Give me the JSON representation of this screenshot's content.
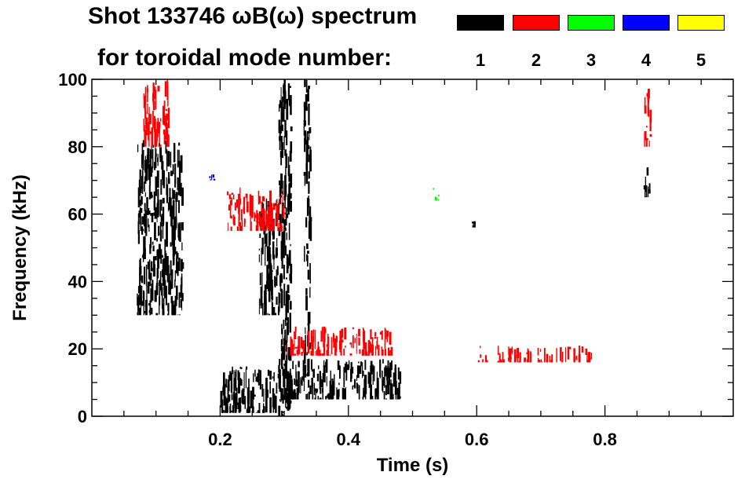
{
  "title": {
    "line1": "Shot 133746 ωB(ω) spectrum",
    "line2": "for toroidal mode number:"
  },
  "legend": [
    {
      "label": "1",
      "color": "#000000"
    },
    {
      "label": "2",
      "color": "#ff0000"
    },
    {
      "label": "3",
      "color": "#00ff00"
    },
    {
      "label": "4",
      "color": "#0000ff"
    },
    {
      "label": "5",
      "color": "#ffff00"
    }
  ],
  "chart_data": {
    "type": "heatmap",
    "xlabel": "Time (s)",
    "ylabel": "Frequency (kHz)",
    "xlim": [
      0.0,
      1.0
    ],
    "ylim": [
      0,
      100
    ],
    "x_ticks": [
      0.2,
      0.4,
      0.6,
      0.8
    ],
    "x_tick_labels": [
      "0.2",
      "0.4",
      "0.6",
      "0.8"
    ],
    "y_ticks": [
      0,
      20,
      40,
      60,
      80,
      100
    ],
    "y_tick_labels": [
      "0",
      "20",
      "40",
      "60",
      "80",
      "100"
    ],
    "grid": false,
    "legend_position": "top-right",
    "series": [
      {
        "name": "1",
        "color": "#000000",
        "regions": [
          {
            "t": [
              0.3,
              0.48
            ],
            "f": [
              5,
              17
            ]
          },
          {
            "t": [
              0.29,
              0.31
            ],
            "f": [
              0,
              100
            ]
          },
          {
            "t": [
              0.33,
              0.34
            ],
            "f": [
              12,
              100
            ]
          },
          {
            "t": [
              0.2,
              0.3
            ],
            "f": [
              1,
              15
            ]
          },
          {
            "t": [
              0.07,
              0.14
            ],
            "f": [
              30,
              82
            ]
          },
          {
            "t": [
              0.26,
              0.29
            ],
            "f": [
              30,
              65
            ]
          },
          {
            "t": [
              0.86,
              0.87
            ],
            "f": [
              65,
              75
            ]
          },
          {
            "t": [
              0.59,
              0.6
            ],
            "f": [
              56,
              58
            ]
          }
        ]
      },
      {
        "name": "2",
        "color": "#ff0000",
        "regions": [
          {
            "t": [
              0.08,
              0.12
            ],
            "f": [
              80,
              100
            ]
          },
          {
            "t": [
              0.86,
              0.87
            ],
            "f": [
              80,
              100
            ]
          },
          {
            "t": [
              0.3,
              0.47
            ],
            "f": [
              18,
              27
            ]
          },
          {
            "t": [
              0.6,
              0.78
            ],
            "f": [
              16,
              21
            ]
          },
          {
            "t": [
              0.21,
              0.3
            ],
            "f": [
              55,
              68
            ]
          }
        ]
      },
      {
        "name": "3",
        "color": "#00ff00",
        "regions": [
          {
            "t": [
              0.53,
              0.54
            ],
            "f": [
              64,
              68
            ]
          }
        ]
      },
      {
        "name": "4",
        "color": "#0000ff",
        "regions": [
          {
            "t": [
              0.18,
              0.19
            ],
            "f": [
              70,
              72
            ]
          }
        ]
      },
      {
        "name": "5",
        "color": "#ffff00",
        "regions": []
      }
    ]
  }
}
